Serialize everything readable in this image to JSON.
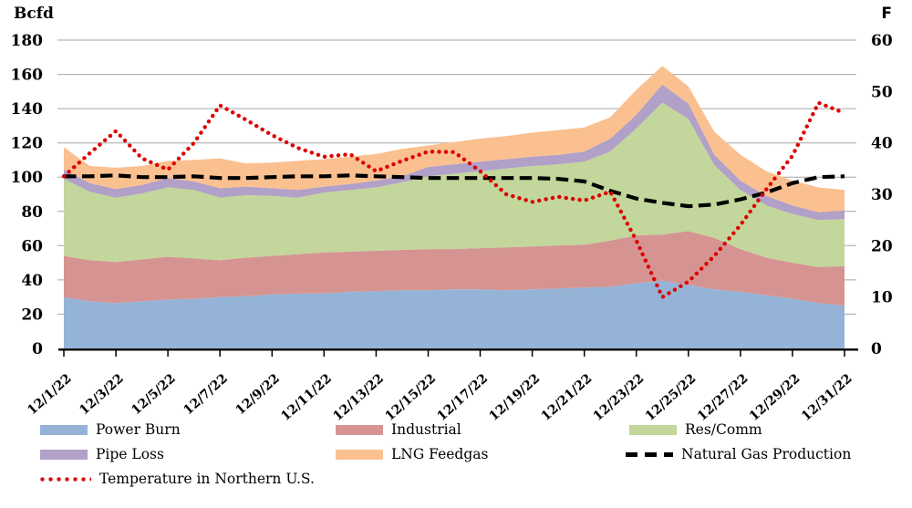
{
  "chart_data": {
    "type": "area",
    "left_axis": {
      "label": "Bcfd",
      "min": 0,
      "max": 180,
      "tick_step": 20
    },
    "right_axis": {
      "label": "F",
      "min": 0,
      "max": 60,
      "tick_step": 10
    },
    "x": [
      "12/1/22",
      "12/2/22",
      "12/3/22",
      "12/4/22",
      "12/5/22",
      "12/6/22",
      "12/7/22",
      "12/8/22",
      "12/9/22",
      "12/10/22",
      "12/11/22",
      "12/12/22",
      "12/13/22",
      "12/14/22",
      "12/15/22",
      "12/16/22",
      "12/17/22",
      "12/18/22",
      "12/19/22",
      "12/20/22",
      "12/21/22",
      "12/22/22",
      "12/23/22",
      "12/24/22",
      "12/25/22",
      "12/26/22",
      "12/27/22",
      "12/28/22",
      "12/29/22",
      "12/30/22",
      "12/31/22"
    ],
    "x_tick_every": 2,
    "grid": true,
    "legend_position": "bottom",
    "gridline_color": "#a6a6a6",
    "stacked_series": [
      {
        "name": "Power Burn",
        "color": "#95b3d7",
        "values": [
          30,
          27.5,
          26.5,
          27.5,
          28.5,
          29,
          30,
          30.5,
          31.5,
          32,
          32,
          33,
          33.5,
          34,
          34,
          34.5,
          34.5,
          34,
          34.5,
          35,
          35.5,
          36,
          38,
          39.5,
          37,
          34.5,
          33,
          31,
          29,
          26.5,
          25
        ]
      },
      {
        "name": "Industrial",
        "color": "#d59492",
        "values": [
          24,
          24,
          24,
          24.5,
          25,
          23.5,
          21.5,
          22.5,
          22.5,
          23,
          24,
          23.5,
          23.5,
          23.5,
          24,
          23.5,
          24,
          25,
          25,
          25,
          25,
          27,
          28,
          27,
          31.5,
          30,
          25,
          22,
          21,
          21,
          23
        ]
      },
      {
        "name": "Res/Comm",
        "color": "#c3d69b",
        "values": [
          45,
          40,
          37.5,
          38.5,
          40.5,
          40,
          36.5,
          36.5,
          35,
          33,
          35,
          36,
          37,
          39.5,
          42.5,
          44,
          45,
          46,
          47,
          47.5,
          48.5,
          52,
          62.5,
          77,
          65.5,
          42.5,
          34.5,
          30.5,
          28.5,
          27.5,
          27.5
        ]
      },
      {
        "name": "Pipe Loss",
        "color": "#b1a0c7",
        "values": [
          5.5,
          5,
          5,
          5,
          5.5,
          5,
          5.5,
          5,
          4.5,
          4.5,
          3.5,
          3.5,
          4,
          3.5,
          5.5,
          5.5,
          5.5,
          5.5,
          5.5,
          5.5,
          6,
          7.5,
          8,
          10.5,
          9,
          6,
          5.5,
          5.5,
          5,
          4.5,
          5
        ]
      },
      {
        "name": "LNG Feedgas",
        "color": "#fac090",
        "values": [
          13,
          10,
          12.5,
          11,
          10,
          12.5,
          17.5,
          13.5,
          15,
          17,
          16,
          16,
          15.5,
          16,
          12.5,
          13,
          13.5,
          13.5,
          14,
          14.5,
          14,
          12.5,
          14.5,
          11,
          10,
          13.5,
          15,
          14.5,
          14.5,
          14.5,
          12
        ]
      }
    ],
    "line_series": [
      {
        "name": "Natural Gas Production",
        "axis": "left",
        "style": "dashed",
        "color": "#000000",
        "values": [
          100.5,
          100.5,
          101,
          100,
          100,
          100.5,
          99.5,
          99.5,
          100,
          100.5,
          100.5,
          101,
          100.5,
          100,
          99.5,
          99.5,
          99.5,
          99.5,
          99.5,
          99,
          97.5,
          92,
          87.5,
          85,
          83,
          84,
          87,
          91,
          96.5,
          100,
          100.5
        ]
      },
      {
        "name": "Temperature in Northern U.S.",
        "axis": "right",
        "style": "dotted",
        "color": "#dd0000",
        "values": [
          33.5,
          38,
          42.3,
          37,
          34.8,
          40,
          47.3,
          44.5,
          41.5,
          39,
          37.3,
          37.8,
          34.5,
          36.5,
          38.3,
          38.2,
          34.5,
          30,
          28.5,
          29.5,
          28.8,
          30.5,
          21,
          10,
          13,
          18,
          24,
          31,
          37.5,
          47.8,
          45.8
        ]
      }
    ]
  }
}
